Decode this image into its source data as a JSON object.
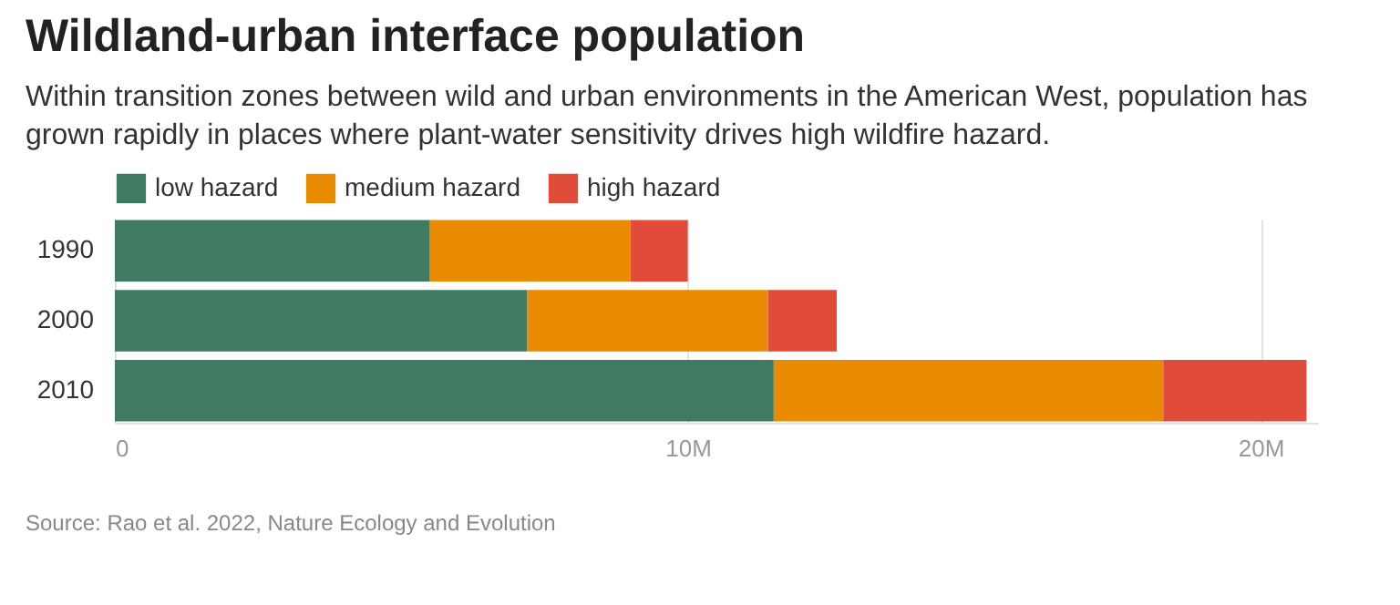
{
  "chart_data": {
    "type": "bar",
    "title": "Wildland-urban interface population",
    "subtitle": "Within transition zones between wild and urban environments in the American West, population has grown rapidly in places where plant-water sensitivity drives high wildfire hazard.",
    "annotations": [
      "Source: Rao et al. 2022, Nature Ecology and Evolution"
    ],
    "orientation": "horizontal",
    "stacked": true,
    "categories": [
      "1990",
      "2000",
      "2010"
    ],
    "series": [
      {
        "name": "low hazard",
        "color": "#3f7a63",
        "values": [
          5.5,
          7.2,
          11.5
        ]
      },
      {
        "name": "medium hazard",
        "color": "#e98b00",
        "values": [
          3.5,
          4.2,
          6.8
        ]
      },
      {
        "name": "high hazard",
        "color": "#e04b3a",
        "values": [
          1.0,
          1.2,
          2.5
        ]
      }
    ],
    "xlim": [
      0,
      21
    ],
    "xticks": [
      0,
      {
        "value": 10,
        "label": "10M"
      },
      {
        "value": 20,
        "label": "20M"
      }
    ],
    "grid": "x",
    "legend": "top left"
  }
}
